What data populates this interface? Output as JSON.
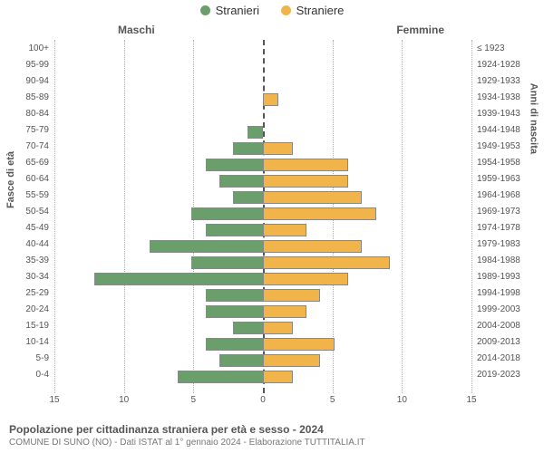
{
  "legend": {
    "male": {
      "label": "Stranieri",
      "color": "#6a9e6a"
    },
    "female": {
      "label": "Straniere",
      "color": "#f0b44a"
    }
  },
  "headers": {
    "left": "Maschi",
    "right": "Femmine"
  },
  "axis_titles": {
    "left": "Fasce di età",
    "right": "Anni di nascita"
  },
  "chart": {
    "type": "population-pyramid",
    "xmax": 15,
    "x_ticks_left": [
      15,
      10,
      5,
      0
    ],
    "x_ticks_right": [
      0,
      5,
      10,
      15
    ],
    "bar_colors": {
      "male": "#6a9e6a",
      "female": "#f0b44a"
    },
    "bar_border": "#888888",
    "background_color": "#ffffff",
    "grid_color": "#aaaaaa",
    "center_line_color": "#555555",
    "rows": [
      {
        "age": "100+",
        "birth": "≤ 1923",
        "m": 0,
        "f": 0
      },
      {
        "age": "95-99",
        "birth": "1924-1928",
        "m": 0,
        "f": 0
      },
      {
        "age": "90-94",
        "birth": "1929-1933",
        "m": 0,
        "f": 0
      },
      {
        "age": "85-89",
        "birth": "1934-1938",
        "m": 0,
        "f": 1
      },
      {
        "age": "80-84",
        "birth": "1939-1943",
        "m": 0,
        "f": 0
      },
      {
        "age": "75-79",
        "birth": "1944-1948",
        "m": 1,
        "f": 0
      },
      {
        "age": "70-74",
        "birth": "1949-1953",
        "m": 2,
        "f": 2
      },
      {
        "age": "65-69",
        "birth": "1954-1958",
        "m": 4,
        "f": 6
      },
      {
        "age": "60-64",
        "birth": "1959-1963",
        "m": 3,
        "f": 6
      },
      {
        "age": "55-59",
        "birth": "1964-1968",
        "m": 2,
        "f": 7
      },
      {
        "age": "50-54",
        "birth": "1969-1973",
        "m": 5,
        "f": 8
      },
      {
        "age": "45-49",
        "birth": "1974-1978",
        "m": 4,
        "f": 3
      },
      {
        "age": "40-44",
        "birth": "1979-1983",
        "m": 8,
        "f": 7
      },
      {
        "age": "35-39",
        "birth": "1984-1988",
        "m": 5,
        "f": 9
      },
      {
        "age": "30-34",
        "birth": "1989-1993",
        "m": 12,
        "f": 6
      },
      {
        "age": "25-29",
        "birth": "1994-1998",
        "m": 4,
        "f": 4
      },
      {
        "age": "20-24",
        "birth": "1999-2003",
        "m": 4,
        "f": 3
      },
      {
        "age": "15-19",
        "birth": "2004-2008",
        "m": 2,
        "f": 2
      },
      {
        "age": "10-14",
        "birth": "2009-2013",
        "m": 4,
        "f": 5
      },
      {
        "age": "5-9",
        "birth": "2014-2018",
        "m": 3,
        "f": 4
      },
      {
        "age": "0-4",
        "birth": "2019-2023",
        "m": 6,
        "f": 2
      }
    ]
  },
  "footer": {
    "title": "Popolazione per cittadinanza straniera per età e sesso - 2024",
    "subtitle": "COMUNE DI SUNO (NO) - Dati ISTAT al 1° gennaio 2024 - Elaborazione TUTTITALIA.IT"
  }
}
